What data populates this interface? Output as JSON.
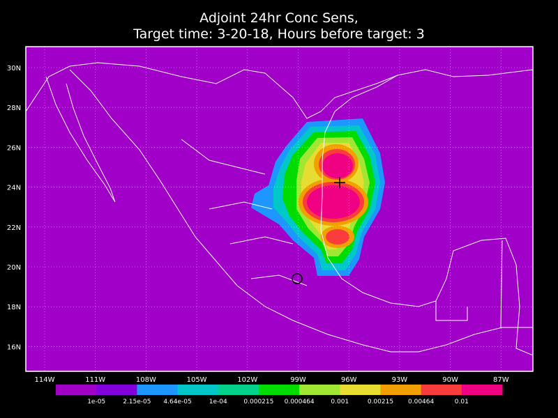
{
  "title": [
    "Adjoint 24hr Conc Sens,",
    "Target time: 3-20-18, Hours before target: 3"
  ],
  "map": {
    "lon_labels": [
      "114W",
      "111W",
      "108W",
      "105W",
      "102W",
      "99W",
      "96W",
      "93W",
      "90W",
      "87W"
    ],
    "lat_labels": [
      "30N",
      "28N",
      "26N",
      "24N",
      "22N",
      "20N",
      "18N",
      "16N"
    ]
  },
  "colorbar": {
    "colors": [
      "#a000c8",
      "#8200dc",
      "#1e96ff",
      "#00c8c8",
      "#00d28c",
      "#00dc00",
      "#a0e632",
      "#e6dc32",
      "#f0a000",
      "#fa3c3c",
      "#f00082"
    ],
    "labels": [
      "1e-05",
      "2.15e-05",
      "4.64e-05",
      "1e-04",
      "0.000215",
      "0.000464",
      "0.001",
      "0.00215",
      "0.00464",
      "0.01"
    ]
  }
}
